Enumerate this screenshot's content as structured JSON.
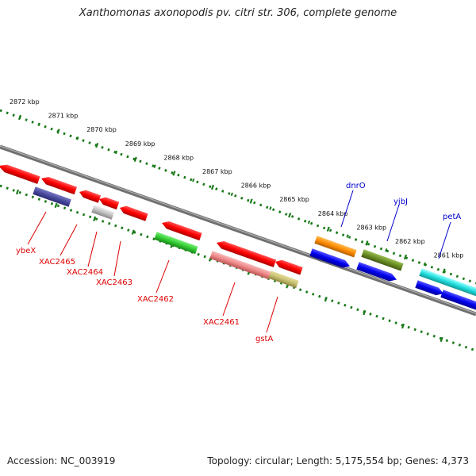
{
  "title": "Xanthomonas axonopodis pv. citri str. 306, complete genome",
  "footer": {
    "accession": "Accession: NC_003919",
    "summary": "Topology: circular; Length: 5,175,554 bp; Genes: 4,373"
  },
  "scale": {
    "ticks": [
      {
        "label": "2872 kbp"
      },
      {
        "label": "2871 kbp"
      },
      {
        "label": "2870 kbp"
      },
      {
        "label": "2869 kbp"
      },
      {
        "label": "2868 kbp"
      },
      {
        "label": "2867 kbp"
      },
      {
        "label": "2866 kbp"
      },
      {
        "label": "2865 kbp"
      },
      {
        "label": "2864 kbp"
      },
      {
        "label": "2863 kbp"
      },
      {
        "label": "2862 kbp"
      },
      {
        "label": "2861 kbp"
      }
    ]
  },
  "genes": {
    "reverse_labeled": [
      {
        "name": "ybeX"
      },
      {
        "name": "XAC2465"
      },
      {
        "name": "XAC2464"
      },
      {
        "name": "XAC2463"
      },
      {
        "name": "XAC2462"
      },
      {
        "name": "XAC2461"
      },
      {
        "name": "gstA"
      }
    ],
    "forward_labeled": [
      {
        "name": "dnrO"
      },
      {
        "name": "yjbJ"
      },
      {
        "name": "petA"
      }
    ]
  },
  "colors": {
    "backbone": "#808080",
    "scale_dots": "#1a7a1a",
    "reverse_label": "#dd0000",
    "forward_label": "#0000cc",
    "red": "#ff0000",
    "slate_blue": "#4a4aa0",
    "light_gray": "#c0c0c0",
    "green": "#33cc33",
    "pink": "#ee8888",
    "khaki": "#c8c070",
    "orange": "#ff8c00",
    "olive": "#6b8e23",
    "blue": "#0000ee",
    "cyan": "#22dddd"
  }
}
